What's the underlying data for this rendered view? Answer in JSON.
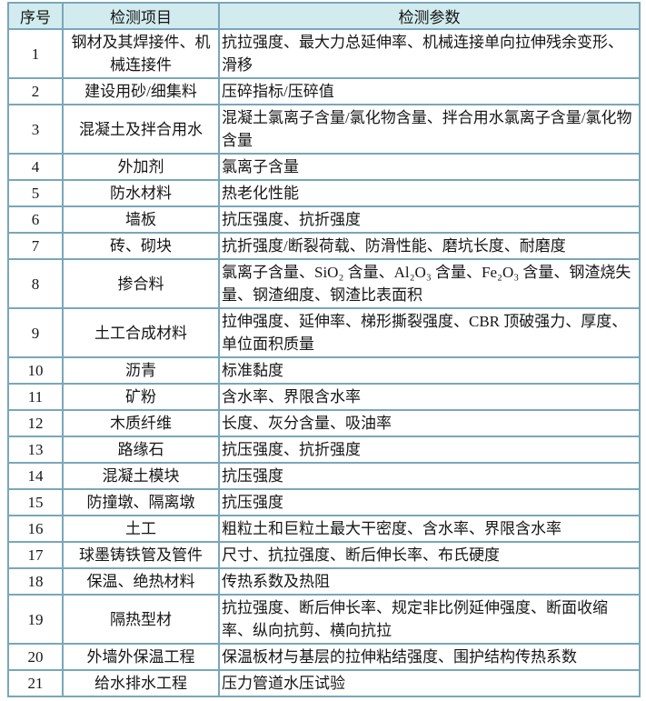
{
  "page": {
    "background": "#ffffff",
    "border_color": "#7aa7b8",
    "header_bg": "#d2ebee",
    "text_color": "#161616"
  },
  "table": {
    "headers": [
      "序号",
      "检测项目",
      "检测参数"
    ],
    "rows": [
      {
        "num": "1",
        "item": "钢材及其焊接件、机械连接件",
        "params": "抗拉强度、最大力总延伸率、机械连接单向拉伸残余变形、滑移"
      },
      {
        "num": "2",
        "item": "建设用砂/细集料",
        "params": "压碎指标/压碎值"
      },
      {
        "num": "3",
        "item": "混凝土及拌合用水",
        "params": "混凝土氯离子含量/氯化物含量、拌合用水氯离子含量/氯化物含量"
      },
      {
        "num": "4",
        "item": "外加剂",
        "params": "氯离子含量"
      },
      {
        "num": "5",
        "item": "防水材料",
        "params": "热老化性能"
      },
      {
        "num": "6",
        "item": "墙板",
        "params": "抗压强度、抗折强度"
      },
      {
        "num": "7",
        "item": "砖、砌块",
        "params": "抗折强度/断裂荷载、防滑性能、磨坑长度、耐磨度"
      },
      {
        "num": "8",
        "item": "掺合料",
        "params": "氯离子含量、SiO₂ 含量、Al₂O₃ 含量、Fe₂O₃ 含量、钢渣烧失量、钢渣细度、钢渣比表面积"
      },
      {
        "num": "9",
        "item": "土工合成材料",
        "params": "拉伸强度、延伸率、梯形撕裂强度、CBR 顶破强力、厚度、单位面积质量"
      },
      {
        "num": "10",
        "item": "沥青",
        "params": "标准黏度"
      },
      {
        "num": "11",
        "item": "矿粉",
        "params": "含水率、界限含水率"
      },
      {
        "num": "12",
        "item": "木质纤维",
        "params": "长度、灰分含量、吸油率"
      },
      {
        "num": "13",
        "item": "路缘石",
        "params": "抗压强度、抗折强度"
      },
      {
        "num": "14",
        "item": "混凝土模块",
        "params": "抗压强度"
      },
      {
        "num": "15",
        "item": "防撞墩、隔离墩",
        "params": "抗压强度"
      },
      {
        "num": "16",
        "item": "土工",
        "params": "粗粒土和巨粒土最大干密度、含水率、界限含水率"
      },
      {
        "num": "17",
        "item": "球墨铸铁管及管件",
        "params": "尺寸、抗拉强度、断后伸长率、布氏硬度"
      },
      {
        "num": "18",
        "item": "保温、绝热材料",
        "params": "传热系数及热阻"
      },
      {
        "num": "19",
        "item": "隔热型材",
        "params": "抗拉强度、断后伸长率、规定非比例延伸强度、断面收缩率、纵向抗剪、横向抗拉"
      },
      {
        "num": "20",
        "item": "外墙外保温工程",
        "params": "保温板材与基层的拉伸粘结强度、围护结构传热系数"
      },
      {
        "num": "21",
        "item": "给水排水工程",
        "params": "压力管道水压试验"
      }
    ]
  }
}
